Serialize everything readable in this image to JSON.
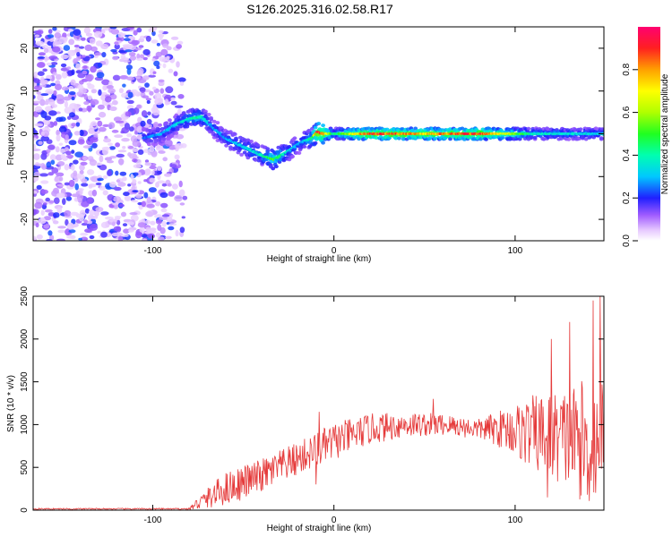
{
  "title": "S126.2025.316.02.58.R17",
  "chart_data": [
    {
      "type": "heatmap",
      "xlabel": "Height of straight line (km)",
      "ylabel": "Frequency (Hz)",
      "xlim": [
        -166,
        149
      ],
      "ylim": [
        -25,
        25
      ],
      "xticks": [
        -100,
        0,
        100
      ],
      "yticks": [
        -20,
        -10,
        0,
        10,
        20
      ],
      "colorbar": {
        "label": "Normalized spectral amplitude",
        "range": [
          0,
          1
        ],
        "ticks": [
          0.0,
          0.2,
          0.4,
          0.6,
          0.8
        ]
      },
      "ridge": {
        "x": [
          -105,
          -95,
          -88,
          -80,
          -73,
          -68,
          -60,
          -50,
          -40,
          -33,
          -25,
          -18,
          -12,
          -9,
          -6,
          0,
          20,
          50,
          80,
          110,
          149
        ],
        "freq": [
          -1,
          0,
          2,
          3.5,
          4,
          2,
          -1,
          -3,
          -5,
          -6,
          -4,
          -2,
          -1,
          0.5,
          0,
          0,
          0,
          0,
          0,
          0,
          0
        ],
        "amp": [
          0.25,
          0.3,
          0.35,
          0.4,
          0.45,
          0.3,
          0.3,
          0.35,
          0.4,
          0.55,
          0.35,
          0.3,
          0.45,
          0.95,
          0.9,
          0.4,
          0.95,
          0.8,
          0.95,
          0.4,
          0.35
        ]
      }
    },
    {
      "type": "line",
      "xlabel": "Height of straight line (km)",
      "ylabel": "SNR (10 * v/v)",
      "xlim": [
        -166,
        149
      ],
      "ylim": [
        0,
        2500
      ],
      "xticks": [
        -100,
        0,
        100
      ],
      "yticks": [
        0,
        500,
        1000,
        1500,
        2000,
        2500
      ],
      "color": "#e53a3a",
      "envelope": {
        "x": [
          -166,
          -80,
          -75,
          -60,
          -40,
          -20,
          0,
          20,
          40,
          60,
          80,
          95,
          110,
          125,
          140,
          149
        ],
        "base": [
          15,
          15,
          80,
          250,
          400,
          600,
          800,
          950,
          1000,
          1000,
          950,
          950,
          900,
          850,
          800,
          800
        ],
        "amp": [
          8,
          8,
          80,
          200,
          200,
          200,
          220,
          180,
          150,
          130,
          120,
          250,
          450,
          550,
          750,
          750
        ]
      },
      "peaks": [
        {
          "x": 147,
          "y": 2500
        },
        {
          "x": 143,
          "y": 2450
        },
        {
          "x": 130,
          "y": 2200
        },
        {
          "x": 120,
          "y": 2000
        },
        {
          "x": -8,
          "y": 1150
        },
        {
          "x": 55,
          "y": 1300
        },
        {
          "x": 118,
          "y": 150
        },
        {
          "x": 140,
          "y": 180
        },
        {
          "x": -10,
          "y": 300
        }
      ]
    }
  ]
}
